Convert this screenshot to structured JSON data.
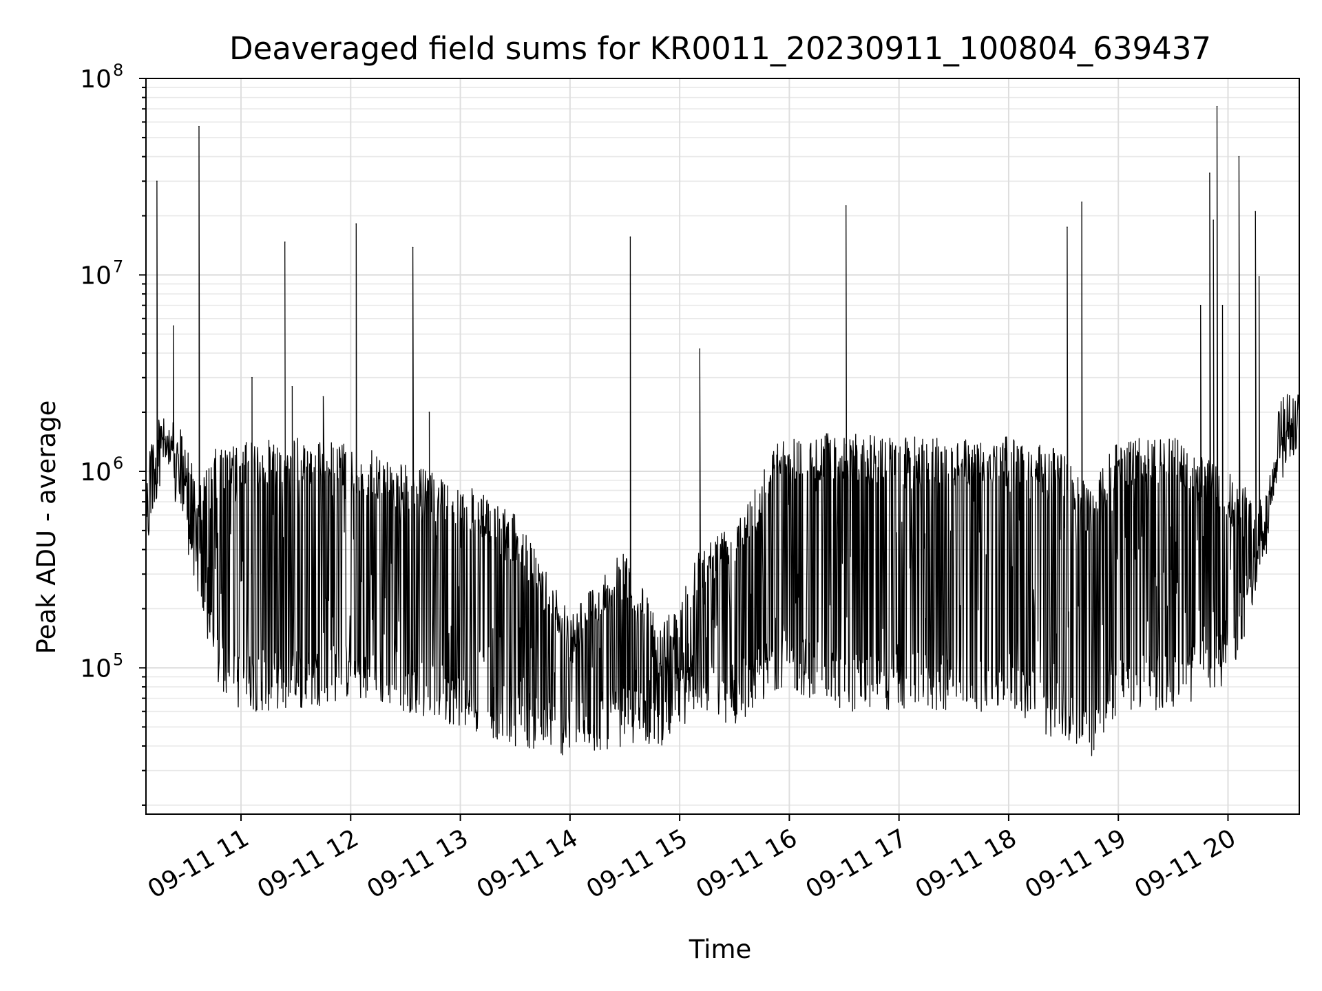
{
  "chart_data": {
    "type": "line",
    "title": "Deaveraged field sums for KR0011_20230911_100804_639437",
    "xlabel": "Time",
    "ylabel": "Peak ADU - average",
    "yscale": "log",
    "ylim": [
      18000,
      100000000
    ],
    "xlim": [
      "2023-09-11 10:08",
      "2023-09-11 20:39"
    ],
    "grid": true,
    "line_color": "#000000",
    "x_ticks": [
      "09-11 11",
      "09-11 12",
      "09-11 13",
      "09-11 14",
      "09-11 15",
      "09-11 16",
      "09-11 17",
      "09-11 18",
      "09-11 19",
      "09-11 20"
    ],
    "y_ticks": [
      "10^5",
      "10^6",
      "10^7",
      "10^8"
    ],
    "spikes": [
      {
        "t": "2023-09-11 10:14",
        "value": 30000000
      },
      {
        "t": "2023-09-11 10:23",
        "value": 5500000
      },
      {
        "t": "2023-09-11 10:37",
        "value": 57000000
      },
      {
        "t": "2023-09-11 11:06",
        "value": 3000000
      },
      {
        "t": "2023-09-11 11:24",
        "value": 14700000
      },
      {
        "t": "2023-09-11 11:28",
        "value": 2700000
      },
      {
        "t": "2023-09-11 11:45",
        "value": 2400000
      },
      {
        "t": "2023-09-11 12:03",
        "value": 18200000
      },
      {
        "t": "2023-09-11 12:34",
        "value": 13800000
      },
      {
        "t": "2023-09-11 12:43",
        "value": 2000000
      },
      {
        "t": "2023-09-11 14:33",
        "value": 15600000
      },
      {
        "t": "2023-09-11 15:11",
        "value": 4200000
      },
      {
        "t": "2023-09-11 16:31",
        "value": 22500000
      },
      {
        "t": "2023-09-11 18:32",
        "value": 17500000
      },
      {
        "t": "2023-09-11 18:40",
        "value": 23500000
      },
      {
        "t": "2023-09-11 19:45",
        "value": 7000000
      },
      {
        "t": "2023-09-11 19:50",
        "value": 33000000
      },
      {
        "t": "2023-09-11 19:52",
        "value": 19000000
      },
      {
        "t": "2023-09-11 19:54",
        "value": 72000000
      },
      {
        "t": "2023-09-11 19:57",
        "value": 7000000
      },
      {
        "t": "2023-09-11 20:06",
        "value": 40000000
      },
      {
        "t": "2023-09-11 20:15",
        "value": 21000000
      },
      {
        "t": "2023-09-11 20:17",
        "value": 9800000
      }
    ],
    "envelope": [
      {
        "t": "2023-09-11 10:08",
        "upper": 1400000,
        "lower": 350000
      },
      {
        "t": "2023-09-11 10:17",
        "upper": 2000000,
        "lower": 1000000
      },
      {
        "t": "2023-09-11 10:28",
        "upper": 1600000,
        "lower": 500000
      },
      {
        "t": "2023-09-11 10:38",
        "upper": 900000,
        "lower": 200000
      },
      {
        "t": "2023-09-11 10:46",
        "upper": 1300000,
        "lower": 80000
      },
      {
        "t": "2023-09-11 11:00",
        "upper": 1400000,
        "lower": 60000
      },
      {
        "t": "2023-09-11 11:30",
        "upper": 1500000,
        "lower": 60000
      },
      {
        "t": "2023-09-11 12:00",
        "upper": 1400000,
        "lower": 70000
      },
      {
        "t": "2023-09-11 12:30",
        "upper": 1100000,
        "lower": 60000
      },
      {
        "t": "2023-09-11 13:00",
        "upper": 900000,
        "lower": 50000
      },
      {
        "t": "2023-09-11 13:30",
        "upper": 600000,
        "lower": 40000
      },
      {
        "t": "2023-09-11 14:00",
        "upper": 200000,
        "lower": 35000
      },
      {
        "t": "2023-09-11 14:30",
        "upper": 400000,
        "lower": 40000
      },
      {
        "t": "2023-09-11 14:50",
        "upper": 160000,
        "lower": 40000
      },
      {
        "t": "2023-09-11 15:10",
        "upper": 400000,
        "lower": 60000
      },
      {
        "t": "2023-09-11 15:30",
        "upper": 600000,
        "lower": 50000
      },
      {
        "t": "2023-09-11 15:55",
        "upper": 1500000,
        "lower": 80000
      },
      {
        "t": "2023-09-11 16:30",
        "upper": 1600000,
        "lower": 60000
      },
      {
        "t": "2023-09-11 17:00",
        "upper": 1500000,
        "lower": 60000
      },
      {
        "t": "2023-09-11 17:30",
        "upper": 1500000,
        "lower": 60000
      },
      {
        "t": "2023-09-11 18:00",
        "upper": 1500000,
        "lower": 60000
      },
      {
        "t": "2023-09-11 18:30",
        "upper": 1300000,
        "lower": 40000
      },
      {
        "t": "2023-09-11 18:45",
        "upper": 800000,
        "lower": 35000
      },
      {
        "t": "2023-09-11 19:00",
        "upper": 1500000,
        "lower": 60000
      },
      {
        "t": "2023-09-11 19:30",
        "upper": 1500000,
        "lower": 60000
      },
      {
        "t": "2023-09-11 19:45",
        "upper": 1200000,
        "lower": 70000
      },
      {
        "t": "2023-09-11 20:00",
        "upper": 1000000,
        "lower": 80000
      },
      {
        "t": "2023-09-11 20:20",
        "upper": 700000,
        "lower": 300000
      },
      {
        "t": "2023-09-11 20:28",
        "upper": 1500000,
        "lower": 1200000
      },
      {
        "t": "2023-09-11 20:39",
        "upper": 2400000,
        "lower": 1300000
      }
    ]
  }
}
